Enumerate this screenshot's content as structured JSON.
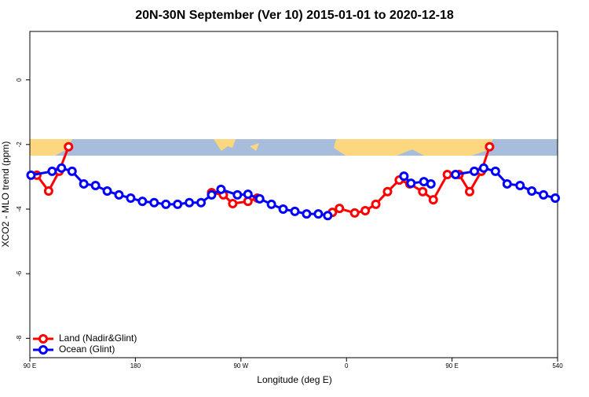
{
  "chart_data": {
    "type": "line",
    "title": "20N-30N September (Ver 10)   2015-01-01 to 2020-12-18",
    "x_label": "Longitude (deg E)",
    "y_label": "XCO2 - MLO trend (ppm)",
    "xlim": [
      90,
      540
    ],
    "xticks": [
      {
        "value": 90,
        "label": "90 E"
      },
      180,
      {
        "value": 270,
        "label": "90 W"
      },
      {
        "value": 360,
        "label": "0"
      },
      {
        "value": 450,
        "label": "90 E"
      },
      540
    ],
    "ylim": [
      -8.6,
      1.5
    ],
    "yticks": [
      0,
      -2,
      -4,
      -6,
      -8
    ],
    "grid": false,
    "legend": "bottom-left",
    "series": [
      {
        "name": "Land (Nadir&Glint)",
        "color": "#ff0000",
        "x": [
          96,
          106,
          115,
          123,
          null,
          245,
          255,
          263,
          276,
          284,
          null,
          348,
          354,
          367,
          376,
          385,
          395,
          405,
          414,
          425,
          434,
          446,
          456,
          465,
          475,
          482
        ],
        "values": [
          -2.95,
          -3.44,
          -2.83,
          -2.07,
          null,
          -3.49,
          -3.56,
          -3.83,
          -3.76,
          -3.66,
          null,
          -4.1,
          -3.98,
          -4.12,
          -4.05,
          -3.85,
          -3.46,
          -3.1,
          -3.22,
          -3.46,
          -3.71,
          -2.93,
          -2.93,
          -3.46,
          -2.83,
          -2.07
        ]
      },
      {
        "name": "Ocean (Glint)",
        "color": "#0000ff",
        "x": [
          91,
          109,
          117,
          126,
          136,
          146,
          156,
          166,
          176,
          186,
          196,
          206,
          216,
          226,
          236,
          245,
          253,
          267,
          276,
          286,
          296,
          306,
          316,
          326,
          336,
          344,
          null,
          409,
          415,
          426,
          432,
          null,
          453,
          469,
          477,
          487,
          497,
          508,
          518,
          528,
          538
        ],
        "values": [
          -2.95,
          -2.83,
          -2.73,
          -2.83,
          -3.22,
          -3.27,
          -3.44,
          -3.56,
          -3.66,
          -3.76,
          -3.8,
          -3.85,
          -3.85,
          -3.8,
          -3.8,
          -3.56,
          -3.39,
          -3.56,
          -3.54,
          -3.68,
          -3.85,
          -4.0,
          -4.07,
          -4.15,
          -4.15,
          -4.2,
          null,
          -2.98,
          -3.2,
          -3.15,
          -3.22,
          null,
          -2.93,
          -2.83,
          -2.73,
          -2.83,
          -3.22,
          -3.27,
          -3.44,
          -3.56,
          -3.66
        ]
      }
    ]
  }
}
